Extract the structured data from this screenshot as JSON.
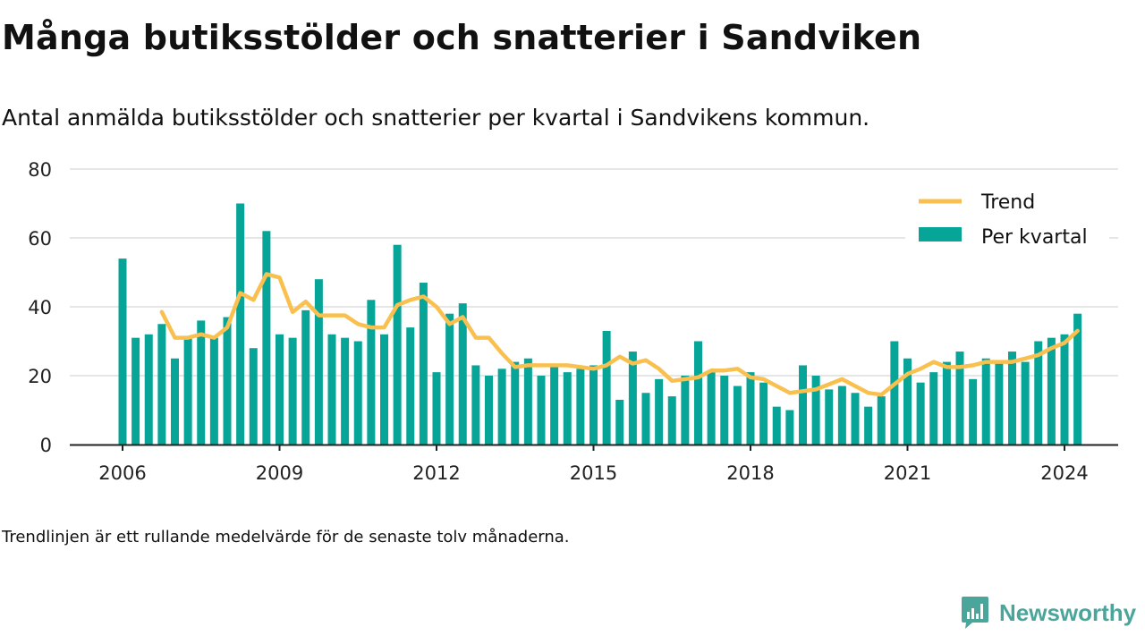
{
  "title": "Många butiksstölder och snatterier i Sandviken",
  "subtitle": "Antal anmälda butiksstölder och snatterier per kvartal i Sandvikens kommun.",
  "footnote": "Trendlinjen är ett rullande medelvärde för de senaste tolv månaderna.",
  "brand": {
    "name": "Newsworthy",
    "logo_icon": "newsworthy-logo-icon",
    "color": "#4aa69b"
  },
  "colors": {
    "bar": "#06a597",
    "trend": "#f9c04f",
    "grid": "#dddddd",
    "axis": "#222222"
  },
  "chart_data": {
    "type": "bar",
    "x_start": "2006 Q1",
    "x_end": "2024 Q1",
    "ylim": [
      0,
      80
    ],
    "yticks": [
      0,
      20,
      40,
      60,
      80
    ],
    "xticks": [
      "2006",
      "2009",
      "2012",
      "2015",
      "2018",
      "2021",
      "2024"
    ],
    "grid": true,
    "legend_position": "top-right",
    "series": [
      {
        "name": "Per kvartal",
        "type": "bar",
        "values": [
          54,
          31,
          32,
          35,
          25,
          31,
          36,
          31,
          37,
          70,
          28,
          62,
          32,
          31,
          39,
          48,
          32,
          31,
          30,
          42,
          32,
          58,
          34,
          47,
          21,
          38,
          41,
          23,
          20,
          22,
          24,
          25,
          20,
          23,
          21,
          22,
          23,
          33,
          13,
          27,
          15,
          19,
          14,
          20,
          30,
          21,
          20,
          17,
          21,
          18,
          11,
          10,
          23,
          20,
          16,
          17,
          15,
          11,
          14,
          30,
          25,
          18,
          21,
          24,
          27,
          19,
          25,
          24,
          27,
          24,
          30,
          31,
          32,
          38
        ]
      },
      {
        "name": "Trend",
        "type": "line",
        "values": [
          null,
          null,
          null,
          38.5,
          31,
          31,
          32,
          31,
          34,
          44,
          42,
          49.5,
          48.5,
          38.5,
          41.5,
          37.5,
          37.5,
          37.5,
          35,
          34,
          34,
          40.5,
          42,
          43,
          40,
          35,
          37,
          31,
          31,
          26.5,
          22.5,
          23,
          23,
          23,
          23,
          22.5,
          22,
          23,
          25.5,
          23.5,
          24.5,
          22,
          18.5,
          19,
          19.5,
          21.5,
          21.5,
          22,
          19.5,
          19,
          17,
          15,
          15.5,
          16,
          17.5,
          19,
          17,
          15,
          14.5,
          17.5,
          20.5,
          22,
          24,
          22.5,
          22.5,
          23,
          24,
          24,
          24,
          25,
          26,
          28,
          29.5,
          33
        ]
      }
    ]
  }
}
